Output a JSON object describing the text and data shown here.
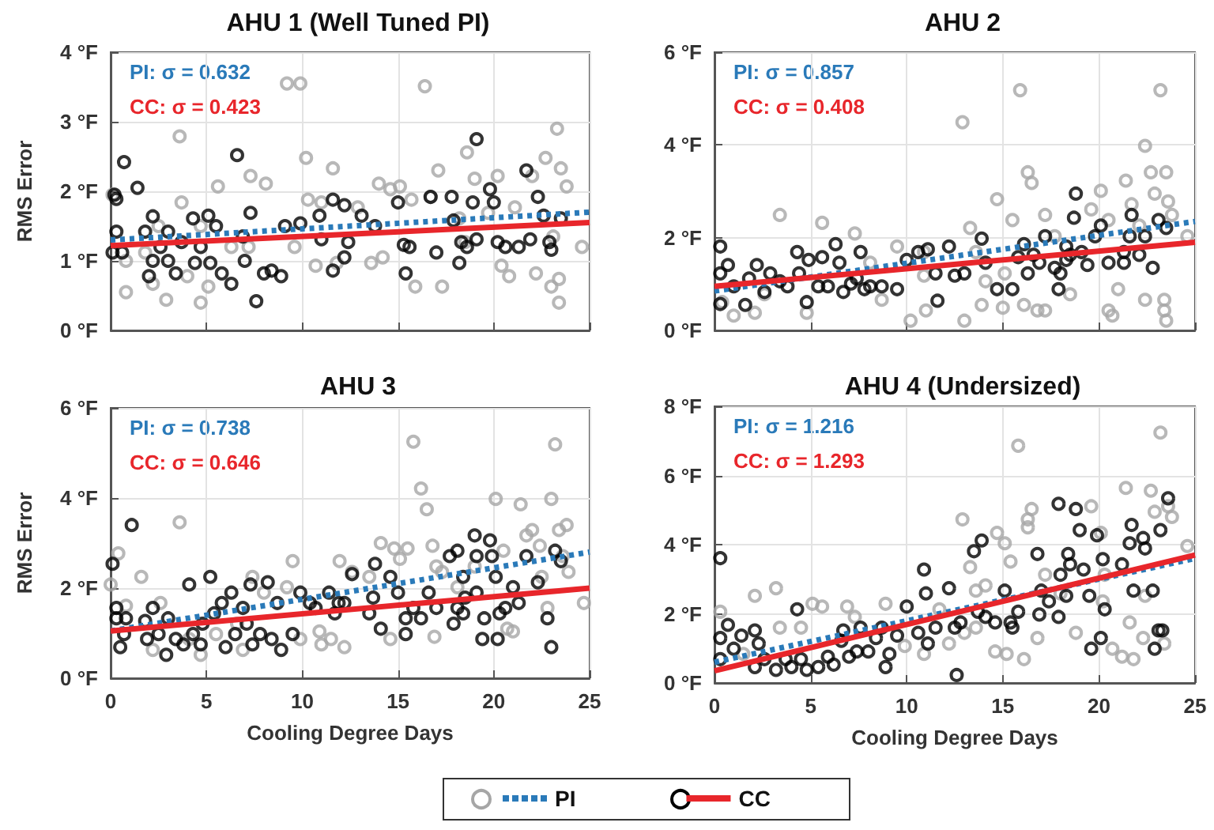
{
  "chart_data": [
    {
      "type": "scatter",
      "title": "AHU 1 (Well Tuned PI)",
      "ylabel": "RMS Error",
      "xlim": [
        0,
        25
      ],
      "xticks": [
        0,
        5,
        10,
        15,
        20,
        25
      ],
      "ylim": [
        0,
        4
      ],
      "yticks": [
        {
          "value": 0,
          "label": "0 °F"
        },
        {
          "value": 1,
          "label": "1 °F"
        },
        {
          "value": 2,
          "label": "2 °F"
        },
        {
          "value": 3,
          "label": "3 °F"
        },
        {
          "value": 4,
          "label": "4 °F"
        }
      ],
      "tick_labels": "y",
      "grid": true,
      "marker": "circle",
      "annotations": [
        "PI: σ = 0.632",
        "CC: σ = 0.423"
      ],
      "series": [
        {
          "color": "#a6a6a6",
          "x": [
            0.1,
            0.8,
            0.8,
            1.8,
            2.2,
            2.9,
            3.6,
            3.7,
            4.0,
            4.7,
            5.1,
            5.6,
            6.3,
            7.3,
            8.1,
            9.2,
            9.9,
            10.2,
            10.3,
            10.7,
            11.0,
            11.6,
            11.8,
            12.9,
            13.6,
            14.0,
            14.2,
            14.6,
            15.1,
            15.7,
            15.9,
            16.4,
            16.7,
            17.1,
            17.3,
            18.2,
            18.6,
            19.0,
            19.7,
            20.2,
            20.4,
            20.8,
            21.1,
            22.0,
            22.2,
            22.7,
            23.0,
            23.3,
            23.4,
            23.5,
            23.4,
            23.8,
            24.6,
            23.1,
            18.5,
            9.6,
            7.2,
            4.7,
            2.5
          ],
          "values": [
            1.95,
            1.0,
            0.55,
            1.12,
            0.67,
            0.44,
            2.79,
            1.84,
            0.78,
            0.4,
            0.63,
            2.07,
            1.2,
            2.22,
            2.11,
            3.55,
            3.55,
            2.48,
            1.88,
            0.93,
            1.84,
            2.33,
            0.97,
            1.77,
            0.97,
            2.11,
            1.05,
            2.03,
            2.07,
            1.88,
            0.63,
            3.51,
            1.92,
            2.3,
            0.63,
            1.61,
            2.56,
            2.18,
            1.69,
            2.22,
            0.93,
            0.78,
            1.77,
            2.22,
            0.82,
            2.48,
            0.63,
            2.9,
            0.74,
            2.33,
            0.4,
            2.07,
            1.2,
            1.35,
            1.27,
            1.2,
            1.2,
            1.5,
            1.5
          ]
        },
        {
          "color": "#000000",
          "x": [
            0.1,
            0.2,
            0.3,
            0.7,
            1.4,
            0.3,
            0.6,
            1.8,
            2.0,
            2.2,
            2.2,
            2.6,
            3.0,
            3.0,
            3.4,
            3.7,
            4.3,
            4.4,
            4.7,
            5.1,
            5.2,
            5.5,
            5.8,
            6.3,
            6.6,
            6.9,
            7.0,
            7.3,
            7.6,
            8.0,
            8.4,
            8.9,
            9.1,
            9.9,
            10.9,
            11.0,
            11.6,
            11.6,
            12.2,
            12.2,
            12.4,
            13.1,
            13.8,
            15.0,
            15.3,
            15.4,
            15.6,
            16.7,
            17.0,
            17.8,
            17.9,
            18.2,
            18.3,
            18.6,
            18.9,
            19.1,
            19.1,
            19.8,
            20.0,
            20.2,
            20.6,
            21.3,
            21.7,
            21.9,
            22.3,
            22.6,
            22.9,
            23.0,
            23.5
          ],
          "values": [
            1.12,
            1.95,
            1.89,
            2.42,
            2.05,
            1.42,
            1.12,
            1.42,
            0.78,
            1.64,
            1.0,
            1.2,
            1.42,
            1.0,
            0.82,
            1.27,
            1.61,
            0.97,
            1.2,
            1.65,
            0.97,
            1.5,
            0.82,
            0.67,
            2.52,
            1.35,
            1.0,
            1.69,
            0.42,
            0.82,
            0.86,
            0.78,
            1.5,
            1.54,
            1.65,
            1.31,
            0.86,
            1.88,
            1.8,
            1.05,
            1.27,
            1.65,
            1.5,
            1.84,
            1.23,
            0.82,
            1.2,
            1.92,
            1.12,
            1.92,
            1.58,
            0.97,
            1.27,
            1.2,
            1.84,
            2.75,
            1.31,
            2.03,
            1.84,
            1.27,
            1.2,
            1.2,
            2.3,
            1.31,
            1.92,
            1.65,
            1.27,
            1.16,
            1.61
          ]
        },
        {
          "type": "line",
          "color": "#2a7ab9",
          "line_style": "dotted",
          "marker": "none",
          "x": [
            0,
            25
          ],
          "values": [
            1.3,
            1.7
          ]
        },
        {
          "type": "line",
          "color": "#e8262b",
          "line_style": "solid",
          "marker": "none",
          "x": [
            0,
            25
          ],
          "values": [
            1.22,
            1.55
          ]
        }
      ]
    },
    {
      "type": "scatter",
      "title": "AHU 2",
      "xlim": [
        0,
        25
      ],
      "xticks": [
        0,
        5,
        10,
        15,
        20,
        25
      ],
      "ylim": [
        0,
        6
      ],
      "yticks": [
        {
          "value": 0,
          "label": "0 °F"
        },
        {
          "value": 2,
          "label": "2 °F"
        },
        {
          "value": 4,
          "label": "4 °F"
        },
        {
          "value": 6,
          "label": "6 °F"
        }
      ],
      "tick_labels": "y",
      "grid": true,
      "marker": "circle",
      "annotations": [
        "PI: σ = 0.857",
        "CC: σ = 0.408"
      ],
      "series": [
        {
          "color": "#a6a6a6",
          "x": [
            1.0,
            2.1,
            3.4,
            4.8,
            5.6,
            7.3,
            8.7,
            9.5,
            10.2,
            10.9,
            11.0,
            12.9,
            13.0,
            13.9,
            13.3,
            14.1,
            14.7,
            15.0,
            15.1,
            15.5,
            15.9,
            16.1,
            16.3,
            16.5,
            16.8,
            17.2,
            17.2,
            17.7,
            18.5,
            19.6,
            20.1,
            20.5,
            20.5,
            20.7,
            21.0,
            21.4,
            21.7,
            22.1,
            22.4,
            22.4,
            22.7,
            22.9,
            23.2,
            23.4,
            23.4,
            23.5,
            23.5,
            23.6,
            23.8,
            24.6,
            10.9,
            8.1,
            2.6,
            0.4,
            13.6
          ],
          "values": [
            0.32,
            0.38,
            2.49,
            0.38,
            2.32,
            2.09,
            0.66,
            1.81,
            0.21,
            1.18,
            0.43,
            4.49,
            0.21,
            0.55,
            2.21,
            1.06,
            2.83,
            0.49,
            1.23,
            2.38,
            5.18,
            0.55,
            3.41,
            3.18,
            0.43,
            0.43,
            2.49,
            2.03,
            0.78,
            2.61,
            3.01,
            2.38,
            0.43,
            0.32,
            0.89,
            3.23,
            2.72,
            2.26,
            3.98,
            0.66,
            3.41,
            2.95,
            5.18,
            0.66,
            0.43,
            3.41,
            0.21,
            2.78,
            2.49,
            2.03,
            1.69,
            1.46,
            0.78,
            0.61,
            1.69
          ]
        },
        {
          "color": "#000000",
          "x": [
            0.3,
            0.3,
            0.3,
            0.7,
            1.0,
            1.6,
            1.8,
            2.2,
            2.6,
            2.9,
            3.4,
            3.8,
            4.3,
            4.4,
            4.8,
            4.9,
            5.4,
            5.6,
            5.9,
            6.3,
            6.5,
            6.7,
            7.1,
            7.4,
            7.6,
            7.8,
            8.1,
            8.7,
            9.5,
            10.0,
            10.6,
            11.1,
            11.5,
            11.6,
            12.2,
            12.5,
            13.0,
            13.9,
            14.1,
            14.7,
            15.5,
            15.8,
            16.1,
            16.3,
            16.6,
            16.9,
            17.2,
            17.7,
            17.9,
            18.0,
            18.3,
            18.5,
            18.7,
            18.8,
            19.1,
            19.4,
            19.8,
            20.1,
            20.5,
            21.3,
            21.6,
            21.7,
            22.1,
            22.4,
            22.8,
            23.1,
            23.5,
            21.3,
            18.3
          ],
          "values": [
            1.81,
            1.23,
            0.57,
            1.41,
            0.95,
            0.55,
            1.12,
            1.41,
            0.83,
            1.23,
            1.06,
            0.95,
            1.69,
            1.23,
            0.61,
            1.52,
            0.95,
            1.58,
            0.95,
            1.86,
            1.46,
            0.83,
            1.01,
            1.12,
            1.69,
            0.89,
            0.95,
            0.95,
            0.89,
            1.52,
            1.69,
            1.75,
            1.23,
            0.64,
            1.81,
            1.18,
            1.23,
            1.98,
            1.46,
            0.89,
            0.89,
            1.58,
            1.86,
            1.23,
            1.63,
            1.46,
            2.03,
            1.35,
            0.89,
            1.23,
            1.52,
            1.63,
            2.43,
            2.95,
            1.69,
            1.41,
            2.03,
            2.26,
            1.46,
            1.46,
            2.03,
            2.49,
            1.63,
            2.03,
            1.35,
            2.38,
            2.21,
            1.69,
            1.81
          ]
        },
        {
          "type": "line",
          "color": "#2a7ab9",
          "line_style": "dotted",
          "marker": "none",
          "x": [
            0,
            25
          ],
          "values": [
            0.85,
            2.35
          ]
        },
        {
          "type": "line",
          "color": "#e8262b",
          "line_style": "solid",
          "marker": "none",
          "x": [
            0,
            25
          ],
          "values": [
            0.95,
            1.9
          ]
        }
      ]
    },
    {
      "type": "scatter",
      "title": "AHU 3",
      "xlabel": "Cooling Degree Days",
      "ylabel": "RMS Error",
      "xlim": [
        0,
        25
      ],
      "xticks": [
        0,
        5,
        10,
        15,
        20,
        25
      ],
      "ylim": [
        0,
        6
      ],
      "yticks": [
        {
          "value": 0,
          "label": "0 °F"
        },
        {
          "value": 2,
          "label": "2 °F"
        },
        {
          "value": 4,
          "label": "4 °F"
        },
        {
          "value": 6,
          "label": "6 °F"
        }
      ],
      "grid": true,
      "marker": "circle",
      "annotations": [
        "PI: σ = 0.738",
        "CC: σ = 0.646"
      ],
      "series": [
        {
          "color": "#a6a6a6",
          "x": [
            0,
            0.4,
            0.8,
            1.6,
            2.2,
            2.6,
            3.6,
            4.1,
            4.7,
            5.5,
            6.9,
            7.4,
            8.0,
            9.2,
            9.5,
            9.9,
            10.9,
            11.0,
            11.5,
            11.95,
            12.2,
            12.6,
            13.5,
            14.1,
            14.6,
            14.8,
            15.1,
            15.5,
            15.8,
            16.2,
            16.5,
            16.8,
            16.9,
            17.3,
            18.1,
            19.0,
            20.1,
            20.5,
            20.7,
            21.0,
            21.4,
            21.7,
            22.0,
            22.4,
            22.5,
            22.8,
            23.0,
            23.2,
            23.4,
            23.6,
            23.8,
            23.9,
            24.7,
            17.0,
            6.6
          ],
          "values": [
            2.08,
            2.77,
            1.61,
            2.25,
            0.63,
            1.67,
            3.46,
            0.87,
            0.52,
            0.98,
            0.63,
            2.25,
            1.9,
            2.02,
            2.6,
            0.87,
            1.04,
            0.75,
            0.87,
            2.6,
            0.69,
            2.36,
            2.25,
            3.0,
            0.87,
            2.88,
            2.65,
            2.88,
            5.25,
            4.21,
            3.75,
            2.94,
            0.92,
            2.36,
            2.02,
            2.48,
            3.98,
            2.83,
            1.1,
            1.04,
            3.86,
            3.17,
            3.29,
            2.94,
            2.25,
            1.56,
            3.98,
            5.19,
            3.29,
            2.71,
            3.4,
            2.36,
            1.67,
            2.48,
            1.21
          ]
        },
        {
          "color": "#000000",
          "x": [
            0.1,
            0.3,
            0.3,
            0.5,
            0.7,
            0.8,
            1.1,
            1.8,
            1.9,
            2.2,
            2.5,
            2.9,
            3.0,
            3.4,
            3.8,
            4.1,
            4.3,
            4.7,
            4.8,
            5.2,
            5.4,
            5.8,
            6.0,
            6.3,
            6.5,
            6.9,
            7.1,
            7.3,
            7.4,
            7.8,
            8.2,
            8.4,
            8.7,
            8.9,
            9.5,
            9.9,
            10.4,
            10.7,
            11.4,
            11.7,
            12.2,
            12.6,
            13.5,
            13.7,
            13.8,
            14.1,
            14.6,
            15.0,
            15.4,
            15.4,
            15.8,
            16.2,
            16.6,
            17.0,
            17.7,
            17.9,
            18.1,
            18.1,
            18.4,
            18.5,
            19.0,
            19.1,
            19.1,
            19.4,
            19.5,
            19.8,
            19.9,
            20.1,
            20.2,
            20.3,
            20.6,
            21.0,
            21.3,
            21.7,
            22.3,
            22.8,
            23.0,
            23.2,
            23.5,
            11.9,
            18.4
          ],
          "values": [
            2.54,
            1.56,
            1.33,
            0.69,
            0.98,
            1.33,
            3.4,
            1.27,
            0.87,
            1.56,
            0.98,
            0.52,
            1.33,
            0.87,
            0.75,
            2.08,
            0.98,
            0.75,
            1.21,
            2.25,
            1.44,
            1.67,
            0.69,
            1.9,
            0.98,
            1.56,
            1.21,
            2.08,
            0.75,
            0.98,
            2.13,
            0.87,
            1.67,
            0.63,
            0.98,
            1.9,
            1.67,
            1.56,
            1.9,
            1.44,
            1.67,
            2.31,
            1.44,
            1.79,
            2.54,
            1.1,
            2.25,
            1.9,
            1.33,
            0.98,
            1.56,
            1.33,
            1.9,
            1.56,
            2.71,
            1.21,
            2.83,
            1.56,
            2.25,
            1.79,
            3.17,
            2.71,
            1.9,
            0.87,
            1.33,
            3.06,
            2.71,
            2.25,
            0.87,
            1.44,
            1.56,
            2.02,
            1.67,
            2.71,
            2.13,
            1.33,
            0.69,
            2.83,
            2.6,
            1.67,
            1.44
          ]
        },
        {
          "type": "line",
          "color": "#2a7ab9",
          "line_style": "dotted",
          "marker": "none",
          "x": [
            0,
            25
          ],
          "values": [
            1.05,
            2.8
          ]
        },
        {
          "type": "line",
          "color": "#e8262b",
          "line_style": "solid",
          "marker": "none",
          "x": [
            0,
            25
          ],
          "values": [
            1.05,
            2.0
          ]
        }
      ]
    },
    {
      "type": "scatter",
      "title": "AHU 4 (Undersized)",
      "xlabel": "Cooling Degree Days",
      "xlim": [
        0,
        25
      ],
      "xticks": [
        0,
        5,
        10,
        15,
        20,
        25
      ],
      "ylim": [
        0,
        8
      ],
      "yticks": [
        {
          "value": 0,
          "label": "0 °F"
        },
        {
          "value": 2,
          "label": "2 °F"
        },
        {
          "value": 4,
          "label": "4 °F"
        },
        {
          "value": 6,
          "label": "6 °F"
        },
        {
          "value": 8,
          "label": "8 °F"
        }
      ],
      "grid": true,
      "marker": "circle",
      "legend": "bottom",
      "annotations": [
        "PI: σ = 1.216",
        "CC: σ = 1.293"
      ],
      "series": [
        {
          "color": "#a6a6a6",
          "x": [
            0.3,
            1.5,
            2.1,
            3.2,
            3.4,
            4.5,
            5.1,
            5.6,
            6.9,
            7.3,
            8.9,
            9.9,
            10.9,
            11.7,
            12.2,
            12.9,
            13.0,
            13.3,
            13.6,
            14.1,
            14.6,
            14.7,
            15.1,
            15.4,
            15.2,
            15.8,
            16.1,
            16.3,
            16.5,
            16.3,
            16.8,
            17.2,
            18.0,
            18.8,
            19.6,
            20.1,
            20.3,
            20.7,
            21.2,
            21.4,
            21.6,
            21.8,
            22.3,
            22.7,
            22.9,
            23.2,
            23.4,
            23.6,
            23.8,
            24.6,
            22.4,
            20.2,
            13.6
          ],
          "values": [
            2.06,
            0.84,
            2.52,
            2.74,
            1.6,
            1.6,
            2.29,
            2.21,
            2.21,
            1.91,
            2.29,
            1.07,
            0.84,
            2.13,
            1.14,
            4.73,
            1.45,
            3.35,
            2.67,
            2.82,
            0.91,
            4.34,
            4.04,
            3.51,
            0.84,
            6.86,
            0.69,
            4.5,
            5.03,
            4.73,
            1.3,
            3.13,
            2.59,
            1.45,
            5.11,
            4.34,
            3.13,
            0.99,
            0.76,
            5.64,
            1.75,
            0.69,
            1.3,
            5.56,
            4.95,
            7.24,
            1.14,
            5.11,
            4.8,
            3.96,
            2.52,
            2.36,
            1.6
          ]
        },
        {
          "color": "#000000",
          "x": [
            0.3,
            0.3,
            0.3,
            0.7,
            1.0,
            1.4,
            2.1,
            2.1,
            2.3,
            2.6,
            3.2,
            3.7,
            4.0,
            4.3,
            4.5,
            4.8,
            5.4,
            5.9,
            6.2,
            6.6,
            6.7,
            7.0,
            7.4,
            7.6,
            8.0,
            8.4,
            8.7,
            8.9,
            9.1,
            9.5,
            10.0,
            10.6,
            10.9,
            11.0,
            11.1,
            11.5,
            12.2,
            12.5,
            12.6,
            12.8,
            13.5,
            13.9,
            13.7,
            14.1,
            14.6,
            15.1,
            15.4,
            15.5,
            15.8,
            16.8,
            16.9,
            17.0,
            17.4,
            17.9,
            17.9,
            18.0,
            18.3,
            18.4,
            18.5,
            18.8,
            19.0,
            19.2,
            19.5,
            19.6,
            19.9,
            20.1,
            20.2,
            20.3,
            21.2,
            21.6,
            21.7,
            21.8,
            22.3,
            22.4,
            22.8,
            22.9,
            23.1,
            23.2,
            23.6,
            23.3
          ],
          "values": [
            3.61,
            1.3,
            0.69,
            1.68,
            0.99,
            1.37,
            1.52,
            0.46,
            1.14,
            0.69,
            0.38,
            0.69,
            0.46,
            2.13,
            0.69,
            0.38,
            0.46,
            0.76,
            0.53,
            1.22,
            1.52,
            0.76,
            0.91,
            1.6,
            0.91,
            1.3,
            1.6,
            0.46,
            0.84,
            1.37,
            2.21,
            1.45,
            3.28,
            2.59,
            1.14,
            1.6,
            2.74,
            1.6,
            0.23,
            1.75,
            3.81,
            4.12,
            2.06,
            1.91,
            1.75,
            2.67,
            1.75,
            1.6,
            2.06,
            3.73,
            1.98,
            2.67,
            2.36,
            5.18,
            1.91,
            3.13,
            2.52,
            3.73,
            3.43,
            5.03,
            4.42,
            3.28,
            2.52,
            0.99,
            4.27,
            1.3,
            3.58,
            2.13,
            3.43,
            4.04,
            4.57,
            2.67,
            4.19,
            3.89,
            2.67,
            0.99,
            1.52,
            4.42,
            5.34,
            1.52
          ]
        },
        {
          "name": "PI",
          "type": "line",
          "color": "#2a7ab9",
          "line_style": "dotted",
          "marker": "none",
          "x": [
            0,
            25
          ],
          "values": [
            0.6,
            3.6
          ]
        },
        {
          "name": "CC",
          "type": "line",
          "color": "#e8262b",
          "line_style": "solid",
          "marker": "none",
          "x": [
            0,
            25
          ],
          "values": [
            0.35,
            3.7
          ]
        }
      ]
    }
  ]
}
